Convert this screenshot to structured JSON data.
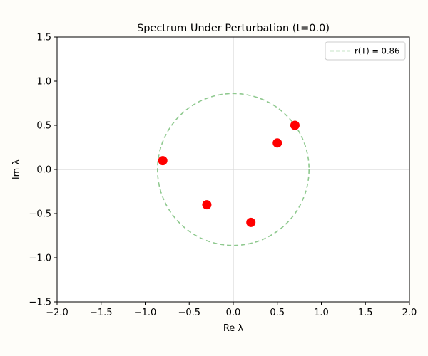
{
  "chart_data": {
    "type": "scatter",
    "title": "Spectrum Under Perturbation (t=0.0)",
    "xlabel": "Re λ",
    "ylabel": "Im λ",
    "xlim": [
      -2.0,
      2.0
    ],
    "ylim": [
      -1.5,
      1.5
    ],
    "xticks": [
      -2.0,
      -1.5,
      -1.0,
      -0.5,
      0.0,
      0.5,
      1.0,
      1.5,
      2.0
    ],
    "yticks": [
      -1.5,
      -1.0,
      -0.5,
      0.0,
      0.5,
      1.0,
      1.5
    ],
    "xtick_labels": [
      "−2.0",
      "−1.5",
      "−1.0",
      "−0.5",
      "0.0",
      "0.5",
      "1.0",
      "1.5",
      "2.0"
    ],
    "ytick_labels": [
      "−1.5",
      "−1.0",
      "−0.5",
      "0.0",
      "0.5",
      "1.0",
      "1.5"
    ],
    "grid": false,
    "reference_lines": {
      "x": 0.0,
      "y": 0.0,
      "color": "#d9d9d9"
    },
    "points": {
      "x": [
        -0.8,
        -0.3,
        0.2,
        0.5,
        0.7
      ],
      "y": [
        0.1,
        -0.4,
        -0.6,
        0.3,
        0.5
      ],
      "color": "#ff0000"
    },
    "circle": {
      "radius": 0.86,
      "center": [
        0.0,
        0.0
      ],
      "style": "dashed",
      "color": "#8fc98f",
      "label": "r(T) = 0.86"
    },
    "legend_placement": "top-right"
  }
}
